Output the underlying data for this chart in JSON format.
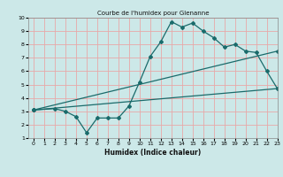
{
  "title": "Courbe de l'humidex pour Glenanne",
  "xlabel": "Humidex (Indice chaleur)",
  "ylabel": "",
  "xlim": [
    -0.5,
    23
  ],
  "ylim": [
    1,
    10
  ],
  "xticks": [
    0,
    1,
    2,
    3,
    4,
    5,
    6,
    7,
    8,
    9,
    10,
    11,
    12,
    13,
    14,
    15,
    16,
    17,
    18,
    19,
    20,
    21,
    22,
    23
  ],
  "yticks": [
    1,
    2,
    3,
    4,
    5,
    6,
    7,
    8,
    9,
    10
  ],
  "bg_color": "#cce8e8",
  "grid_color": "#e8a8a8",
  "line_color": "#1a6b6b",
  "line1": {
    "x": [
      0,
      2,
      3,
      4,
      5,
      6,
      7,
      8,
      9,
      10,
      11,
      12,
      13,
      14,
      15,
      16,
      17,
      18,
      19,
      20,
      21,
      22,
      23
    ],
    "y": [
      3.1,
      3.2,
      3.0,
      2.6,
      1.4,
      2.5,
      2.5,
      2.5,
      3.4,
      5.2,
      7.1,
      8.2,
      9.7,
      9.3,
      9.6,
      9.0,
      8.5,
      7.8,
      8.0,
      7.5,
      7.4,
      6.0,
      4.7
    ]
  },
  "line2": {
    "x": [
      0,
      23
    ],
    "y": [
      3.1,
      4.7
    ]
  },
  "line3": {
    "x": [
      0,
      23
    ],
    "y": [
      3.1,
      7.5
    ]
  }
}
